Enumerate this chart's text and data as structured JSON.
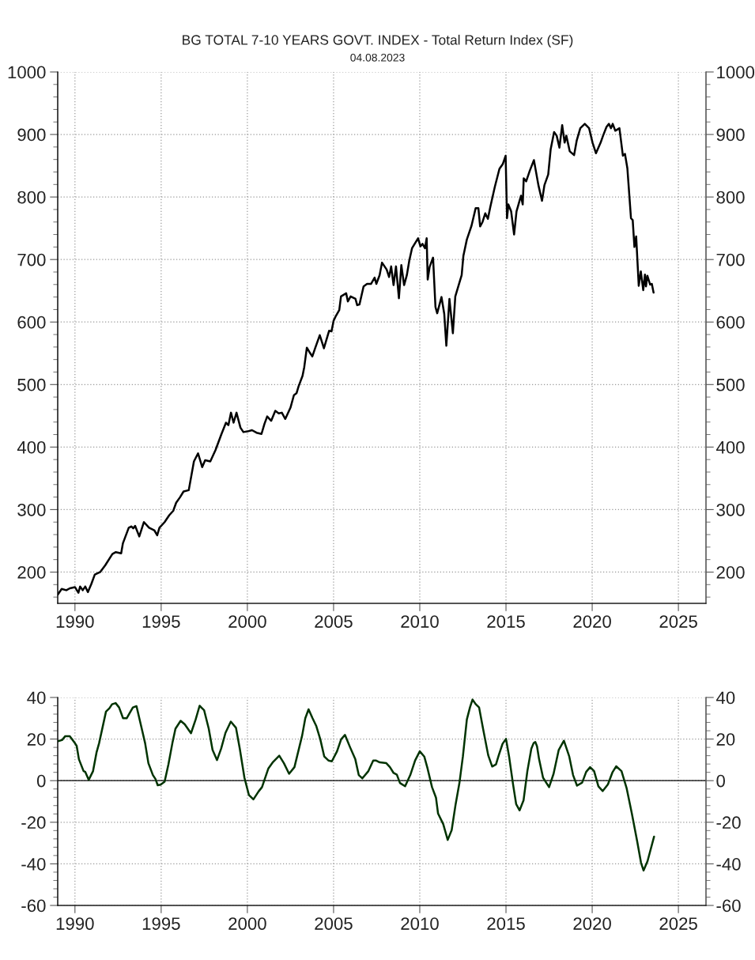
{
  "chart_data": [
    {
      "type": "line",
      "title": "BG TOTAL 7-10 YEARS GOVT. INDEX - Total Return Index (SF)",
      "subtitle": "04.08.2023",
      "xlim": [
        1989.0,
        2026.6
      ],
      "xticks": [
        1990,
        1995,
        2000,
        2005,
        2010,
        2015,
        2020,
        2025
      ],
      "ylim": [
        150,
        1000
      ],
      "yticks": [
        200,
        300,
        400,
        500,
        600,
        700,
        800,
        900,
        1000
      ],
      "y2lim": [
        150,
        1000
      ],
      "y2ticks": [
        200,
        300,
        400,
        500,
        600,
        700,
        800,
        900,
        1000
      ],
      "grid": true,
      "legend": false,
      "marker": "none",
      "line_style": "solid",
      "series": [
        {
          "color": "#000000",
          "x": [
            1989.0,
            1989.23,
            1989.5,
            1989.7,
            1990.0,
            1990.2,
            1990.3,
            1990.45,
            1990.6,
            1990.75,
            1990.95,
            1991.15,
            1991.46,
            1991.76,
            1992.17,
            1992.37,
            1992.68,
            1992.78,
            1993.12,
            1993.28,
            1993.38,
            1993.49,
            1993.73,
            1994.0,
            1994.3,
            1994.6,
            1994.77,
            1994.9,
            1995.2,
            1995.47,
            1995.7,
            1995.87,
            1996.1,
            1996.3,
            1996.6,
            1996.9,
            1997.14,
            1997.38,
            1997.55,
            1997.85,
            1998.15,
            1998.5,
            1998.76,
            1998.9,
            1999.05,
            1999.2,
            1999.37,
            1999.6,
            1999.77,
            2000.0,
            2000.27,
            2000.53,
            2000.82,
            2000.99,
            2001.15,
            2001.38,
            2001.62,
            2001.82,
            2002.0,
            2002.2,
            2002.5,
            2002.7,
            2002.85,
            2002.97,
            2003.2,
            2003.3,
            2003.45,
            2003.6,
            2003.77,
            2003.93,
            2004.2,
            2004.44,
            2004.74,
            2004.88,
            2005.0,
            2005.14,
            2005.33,
            2005.43,
            2005.73,
            2005.83,
            2005.99,
            2006.27,
            2006.37,
            2006.5,
            2006.74,
            2006.94,
            2007.17,
            2007.38,
            2007.48,
            2007.67,
            2007.81,
            2008.08,
            2008.22,
            2008.34,
            2008.48,
            2008.62,
            2008.79,
            2008.93,
            2009.09,
            2009.25,
            2009.39,
            2009.55,
            2009.9,
            2010.04,
            2010.16,
            2010.3,
            2010.4,
            2010.46,
            2010.57,
            2010.77,
            2010.91,
            2011.01,
            2011.26,
            2011.42,
            2011.54,
            2011.72,
            2011.92,
            2012.06,
            2012.43,
            2012.53,
            2012.73,
            2013.0,
            2013.24,
            2013.4,
            2013.5,
            2013.64,
            2013.8,
            2013.95,
            2014.09,
            2014.35,
            2014.62,
            2014.82,
            2014.98,
            2015.06,
            2015.14,
            2015.3,
            2015.47,
            2015.61,
            2015.87,
            2015.97,
            2016.03,
            2016.17,
            2016.38,
            2016.62,
            2016.88,
            2017.09,
            2017.23,
            2017.45,
            2017.59,
            2017.79,
            2017.94,
            2018.1,
            2018.26,
            2018.4,
            2018.5,
            2018.7,
            2018.95,
            2019.1,
            2019.31,
            2019.57,
            2019.82,
            2020.02,
            2020.22,
            2020.49,
            2020.63,
            2020.83,
            2020.97,
            2021.09,
            2021.19,
            2021.34,
            2021.58,
            2021.78,
            2021.9,
            2022.04,
            2022.25,
            2022.35,
            2022.45,
            2022.55,
            2022.7,
            2022.82,
            2022.96,
            2023.06,
            2023.12,
            2023.2,
            2023.36,
            2023.46,
            2023.56
          ],
          "values": [
            164,
            173,
            171,
            174,
            176,
            167,
            177,
            171,
            177,
            168,
            181,
            196,
            200,
            211,
            229,
            232,
            230,
            246,
            271,
            273,
            270,
            274,
            257,
            280,
            271,
            267,
            259,
            271,
            280,
            291,
            298,
            311,
            320,
            329,
            331,
            377,
            390,
            368,
            379,
            377,
            395,
            421,
            439,
            435,
            455,
            439,
            455,
            431,
            424,
            425,
            427,
            423,
            421,
            437,
            449,
            442,
            458,
            454,
            455,
            445,
            463,
            483,
            486,
            497,
            514,
            528,
            559,
            552,
            545,
            558,
            579,
            558,
            586,
            585,
            602,
            610,
            619,
            641,
            646,
            633,
            641,
            637,
            627,
            628,
            657,
            661,
            661,
            671,
            661,
            675,
            695,
            684,
            672,
            689,
            659,
            689,
            638,
            691,
            659,
            675,
            698,
            718,
            734,
            721,
            725,
            718,
            734,
            668,
            688,
            703,
            624,
            614,
            640,
            613,
            562,
            637,
            582,
            641,
            675,
            706,
            732,
            754,
            782,
            782,
            753,
            760,
            774,
            765,
            784,
            816,
            845,
            853,
            866,
            766,
            788,
            777,
            740,
            777,
            802,
            788,
            830,
            825,
            842,
            859,
            819,
            794,
            819,
            836,
            876,
            904,
            898,
            879,
            915,
            887,
            898,
            873,
            867,
            890,
            910,
            917,
            910,
            887,
            870,
            887,
            898,
            912,
            917,
            910,
            917,
            906,
            910,
            866,
            869,
            846,
            766,
            763,
            720,
            737,
            658,
            681,
            651,
            676,
            657,
            674,
            660,
            661,
            647
          ]
        }
      ]
    },
    {
      "type": "line",
      "xlim": [
        1989.0,
        2026.6
      ],
      "xticks": [
        1990,
        1995,
        2000,
        2005,
        2010,
        2015,
        2020,
        2025
      ],
      "ylim": [
        -60,
        40
      ],
      "yticks": [
        -60,
        -40,
        -20,
        0,
        20,
        40
      ],
      "y2lim": [
        -60,
        40
      ],
      "y2ticks": [
        -60,
        -40,
        -20,
        0,
        20,
        40
      ],
      "grid": true,
      "legend": false,
      "marker": "none",
      "line_style": "solid",
      "ref_lines": [
        {
          "axis": "y",
          "value": 0,
          "color": "#000000",
          "line_style": "solid"
        }
      ],
      "series": [
        {
          "color": "#003300",
          "x": [
            1989.02,
            1989.25,
            1989.44,
            1989.7,
            1990.0,
            1990.1,
            1990.23,
            1990.5,
            1990.6,
            1990.8,
            1991.05,
            1991.25,
            1991.4,
            1991.6,
            1991.8,
            1992.0,
            1992.15,
            1992.36,
            1992.56,
            1992.79,
            1993.0,
            1993.15,
            1993.36,
            1993.57,
            1993.84,
            1994.07,
            1994.26,
            1994.52,
            1994.67,
            1994.8,
            1994.97,
            1995.2,
            1995.42,
            1995.65,
            1995.83,
            1996.13,
            1996.37,
            1996.73,
            1997.0,
            1997.23,
            1997.49,
            1997.76,
            1997.98,
            1998.24,
            1998.48,
            1998.73,
            1999.04,
            1999.34,
            1999.56,
            1999.83,
            2000.09,
            2000.35,
            2000.65,
            2000.85,
            2001.22,
            2001.49,
            2001.85,
            2002.12,
            2002.42,
            2002.73,
            2003.18,
            2003.36,
            2003.55,
            2003.78,
            2004.0,
            2004.23,
            2004.46,
            2004.7,
            2004.9,
            2005.2,
            2005.44,
            2005.66,
            2005.96,
            2006.26,
            2006.46,
            2006.67,
            2007.02,
            2007.3,
            2007.45,
            2007.68,
            2008.06,
            2008.27,
            2008.48,
            2008.67,
            2008.85,
            2009.15,
            2009.45,
            2009.73,
            2010.0,
            2010.26,
            2010.45,
            2010.71,
            2010.94,
            2011.06,
            2011.36,
            2011.62,
            2011.85,
            2012.08,
            2012.3,
            2012.5,
            2012.73,
            2012.91,
            2013.06,
            2013.24,
            2013.44,
            2013.67,
            2013.97,
            2014.2,
            2014.42,
            2014.58,
            2014.8,
            2015.0,
            2015.18,
            2015.41,
            2015.59,
            2015.79,
            2016.02,
            2016.24,
            2016.47,
            2016.6,
            2016.7,
            2016.8,
            2016.92,
            2017.15,
            2017.5,
            2017.76,
            2018.06,
            2018.36,
            2018.67,
            2018.89,
            2019.12,
            2019.42,
            2019.65,
            2019.88,
            2020.11,
            2020.36,
            2020.61,
            2020.91,
            2021.17,
            2021.39,
            2021.7,
            2022.0,
            2022.3,
            2022.61,
            2022.83,
            2022.98,
            2023.21,
            2023.59
          ],
          "values": [
            19,
            19.5,
            21.4,
            21.4,
            18,
            16.7,
            10.3,
            4.6,
            4.2,
            0.4,
            4.6,
            13.5,
            18,
            25.6,
            33.2,
            34.8,
            36.7,
            37.3,
            35.2,
            30,
            30,
            32.2,
            35.2,
            35.8,
            26.2,
            18,
            8.4,
            2.7,
            0.8,
            -2.2,
            -1.9,
            -0.5,
            7.8,
            18,
            25,
            28.8,
            27.1,
            22.8,
            29.4,
            36,
            33.9,
            25,
            14.8,
            9.9,
            15.4,
            23,
            28.4,
            25.4,
            15.4,
            1.4,
            -6.9,
            -9,
            -5.2,
            -3.1,
            5.9,
            9,
            12,
            8.4,
            3.3,
            6.5,
            21.8,
            30,
            34.3,
            30,
            26.2,
            19.9,
            11.6,
            9.7,
            9.3,
            14.1,
            19.9,
            22,
            16,
            10.3,
            2.7,
            1.1,
            4.6,
            9.7,
            9.7,
            8.8,
            8.4,
            6.5,
            3.7,
            2.9,
            -1.1,
            -2.7,
            2.7,
            9.7,
            14.1,
            11.6,
            5.9,
            -3.1,
            -8.2,
            -15.8,
            -20.9,
            -28.5,
            -23.8,
            -11.3,
            -1.1,
            11.6,
            29.4,
            35.2,
            39,
            36.8,
            35.2,
            25,
            12.2,
            6.8,
            7.8,
            12.2,
            17.7,
            20.1,
            11.6,
            -1.8,
            -11.3,
            -14.3,
            -9.4,
            4.6,
            15.4,
            18,
            18.6,
            16.5,
            10.3,
            1.4,
            -3.1,
            3.3,
            14.8,
            19.2,
            11.6,
            2.7,
            -2.4,
            -0.9,
            4.2,
            6.5,
            4.6,
            -2.7,
            -5,
            -1.8,
            3.9,
            6.9,
            4.6,
            -3.7,
            -15.8,
            -29.2,
            -39.4,
            -43.2,
            -38.7,
            -26.9
          ]
        }
      ]
    }
  ]
}
